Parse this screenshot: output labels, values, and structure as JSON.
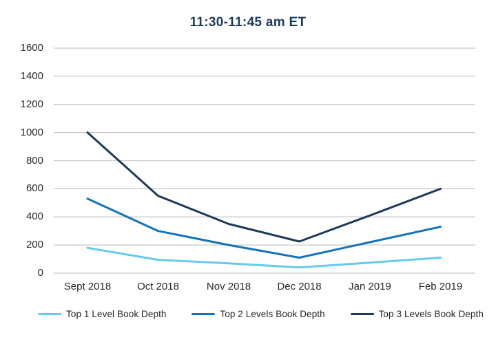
{
  "chart_data": {
    "type": "line",
    "title": "11:30-11:45 am ET",
    "title_color": "#1b3a5c",
    "categories": [
      "Sept 2018",
      "Oct 2018",
      "Nov 2018",
      "Dec 2018",
      "Jan 2019",
      "Feb 2019"
    ],
    "series": [
      {
        "name": "Top 1 Level Book Depth",
        "color": "#63cbee",
        "values": [
          180,
          95,
          70,
          40,
          75,
          110
        ]
      },
      {
        "name": "Top 2 Levels Book Depth",
        "color": "#1173bc",
        "values": [
          530,
          300,
          200,
          110,
          220,
          330
        ]
      },
      {
        "name": "Top 3 Levels Book Depth",
        "color": "#1b3a5c",
        "values": [
          1000,
          550,
          350,
          225,
          410,
          600
        ]
      }
    ],
    "xlabel": "",
    "ylabel": "",
    "ylim": [
      0,
      1600
    ],
    "yticks": [
      0,
      200,
      400,
      600,
      800,
      1000,
      1200,
      1400,
      1600
    ],
    "grid": true,
    "grid_color": "#c7c7c7",
    "tick_color": "#2b2828",
    "legend_position": "bottom"
  }
}
